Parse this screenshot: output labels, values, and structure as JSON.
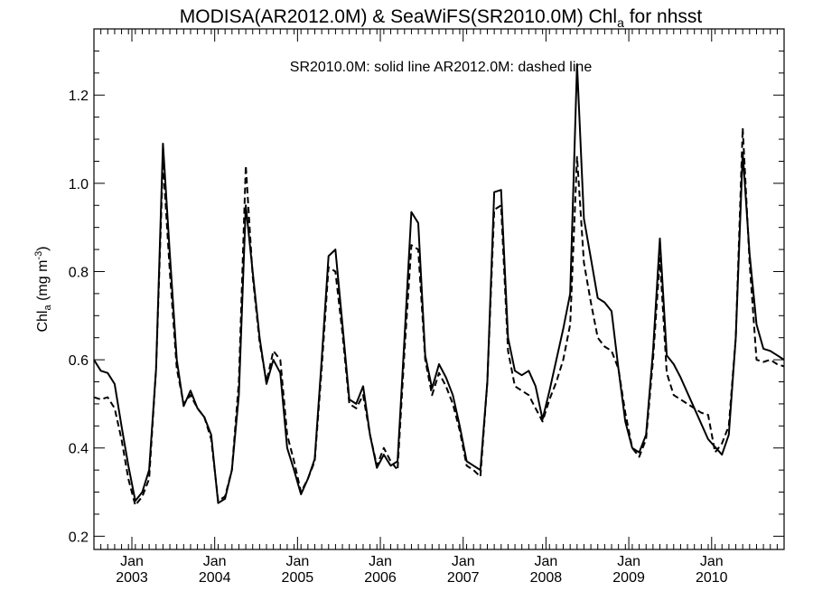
{
  "chart_data": {
    "type": "line",
    "title": {
      "main": "MODISA(AR2012.0M) & SeaWiFS(SR2010.0M)  Chl",
      "sub": "a",
      "tail": " for nhsst"
    },
    "ylabel": {
      "main": "Chl",
      "sub": "a",
      "unit_open": " (mg m",
      "unit_sup": "-3",
      "unit_close": ")"
    },
    "annotation": "SR2010.0M: solid line   AR2012.0M: dashed line",
    "xlim": [
      2002.542,
      2010.875
    ],
    "ylim": [
      0.17,
      1.35
    ],
    "yticks": [
      0.2,
      0.4,
      0.6,
      0.8,
      1.0,
      1.2
    ],
    "ytick_labels": [
      "0.2",
      "0.4",
      "0.6",
      "0.8",
      "1.0",
      "1.2"
    ],
    "xticks": [
      {
        "x": 2003.0,
        "month": "Jan",
        "year": "2003"
      },
      {
        "x": 2004.0,
        "month": "Jan",
        "year": "2004"
      },
      {
        "x": 2005.0,
        "month": "Jan",
        "year": "2005"
      },
      {
        "x": 2006.0,
        "month": "Jan",
        "year": "2006"
      },
      {
        "x": 2007.0,
        "month": "Jan",
        "year": "2007"
      },
      {
        "x": 2008.0,
        "month": "Jan",
        "year": "2008"
      },
      {
        "x": 2009.0,
        "month": "Jan",
        "year": "2009"
      },
      {
        "x": 2010.0,
        "month": "Jan",
        "year": "2010"
      }
    ],
    "x_minor_step": 0.0833333,
    "series": [
      {
        "name": "SR2010.0M",
        "style": "solid",
        "color": "#000000",
        "points": [
          [
            2002.542,
            0.6
          ],
          [
            2002.625,
            0.575
          ],
          [
            2002.708,
            0.57
          ],
          [
            2002.792,
            0.545
          ],
          [
            2002.875,
            0.45
          ],
          [
            2002.958,
            0.36
          ],
          [
            2003.042,
            0.28
          ],
          [
            2003.125,
            0.3
          ],
          [
            2003.208,
            0.35
          ],
          [
            2003.292,
            0.58
          ],
          [
            2003.375,
            1.09
          ],
          [
            2003.458,
            0.84
          ],
          [
            2003.542,
            0.6
          ],
          [
            2003.625,
            0.495
          ],
          [
            2003.708,
            0.53
          ],
          [
            2003.792,
            0.49
          ],
          [
            2003.875,
            0.47
          ],
          [
            2003.958,
            0.43
          ],
          [
            2004.042,
            0.275
          ],
          [
            2004.125,
            0.285
          ],
          [
            2004.208,
            0.35
          ],
          [
            2004.292,
            0.52
          ],
          [
            2004.375,
            0.95
          ],
          [
            2004.458,
            0.8
          ],
          [
            2004.542,
            0.65
          ],
          [
            2004.625,
            0.545
          ],
          [
            2004.708,
            0.6
          ],
          [
            2004.792,
            0.57
          ],
          [
            2004.875,
            0.4
          ],
          [
            2004.958,
            0.35
          ],
          [
            2005.042,
            0.295
          ],
          [
            2005.125,
            0.33
          ],
          [
            2005.208,
            0.375
          ],
          [
            2005.292,
            0.6
          ],
          [
            2005.375,
            0.835
          ],
          [
            2005.458,
            0.85
          ],
          [
            2005.542,
            0.68
          ],
          [
            2005.625,
            0.51
          ],
          [
            2005.708,
            0.5
          ],
          [
            2005.792,
            0.54
          ],
          [
            2005.875,
            0.43
          ],
          [
            2005.958,
            0.355
          ],
          [
            2006.042,
            0.385
          ],
          [
            2006.125,
            0.36
          ],
          [
            2006.208,
            0.37
          ],
          [
            2006.292,
            0.65
          ],
          [
            2006.375,
            0.935
          ],
          [
            2006.458,
            0.91
          ],
          [
            2006.542,
            0.61
          ],
          [
            2006.625,
            0.535
          ],
          [
            2006.708,
            0.59
          ],
          [
            2006.792,
            0.56
          ],
          [
            2006.875,
            0.52
          ],
          [
            2006.958,
            0.45
          ],
          [
            2007.042,
            0.37
          ],
          [
            2007.125,
            0.36
          ],
          [
            2007.208,
            0.35
          ],
          [
            2007.292,
            0.55
          ],
          [
            2007.375,
            0.98
          ],
          [
            2007.458,
            0.985
          ],
          [
            2007.542,
            0.65
          ],
          [
            2007.625,
            0.575
          ],
          [
            2007.708,
            0.565
          ],
          [
            2007.792,
            0.575
          ],
          [
            2007.875,
            0.54
          ],
          [
            2007.958,
            0.465
          ],
          [
            2008.042,
            0.53
          ],
          [
            2008.125,
            0.6
          ],
          [
            2008.208,
            0.67
          ],
          [
            2008.292,
            0.75
          ],
          [
            2008.375,
            1.27
          ],
          [
            2008.458,
            0.92
          ],
          [
            2008.542,
            0.83
          ],
          [
            2008.625,
            0.74
          ],
          [
            2008.708,
            0.73
          ],
          [
            2008.792,
            0.71
          ],
          [
            2008.875,
            0.58
          ],
          [
            2008.958,
            0.46
          ],
          [
            2009.042,
            0.4
          ],
          [
            2009.125,
            0.39
          ],
          [
            2009.208,
            0.43
          ],
          [
            2009.292,
            0.62
          ],
          [
            2009.375,
            0.875
          ],
          [
            2009.458,
            0.61
          ],
          [
            2009.542,
            0.59
          ],
          [
            2009.625,
            0.56
          ],
          [
            2009.958,
            0.42
          ],
          [
            2010.125,
            0.385
          ],
          [
            2010.208,
            0.43
          ],
          [
            2010.292,
            0.65
          ],
          [
            2010.375,
            1.07
          ],
          [
            2010.458,
            0.84
          ],
          [
            2010.542,
            0.68
          ],
          [
            2010.625,
            0.625
          ],
          [
            2010.708,
            0.62
          ],
          [
            2010.792,
            0.61
          ],
          [
            2010.875,
            0.6
          ]
        ]
      },
      {
        "name": "AR2012.0M",
        "style": "dashed",
        "color": "#000000",
        "points": [
          [
            2002.542,
            0.515
          ],
          [
            2002.625,
            0.51
          ],
          [
            2002.708,
            0.515
          ],
          [
            2002.792,
            0.49
          ],
          [
            2002.875,
            0.42
          ],
          [
            2002.958,
            0.33
          ],
          [
            2003.042,
            0.27
          ],
          [
            2003.125,
            0.29
          ],
          [
            2003.208,
            0.33
          ],
          [
            2003.292,
            0.58
          ],
          [
            2003.375,
            1.05
          ],
          [
            2003.458,
            0.8
          ],
          [
            2003.542,
            0.58
          ],
          [
            2003.625,
            0.5
          ],
          [
            2003.708,
            0.52
          ],
          [
            2003.792,
            0.49
          ],
          [
            2003.875,
            0.47
          ],
          [
            2003.958,
            0.42
          ],
          [
            2004.042,
            0.28
          ],
          [
            2004.125,
            0.29
          ],
          [
            2004.208,
            0.35
          ],
          [
            2004.292,
            0.55
          ],
          [
            2004.375,
            1.04
          ],
          [
            2004.458,
            0.79
          ],
          [
            2004.542,
            0.64
          ],
          [
            2004.625,
            0.55
          ],
          [
            2004.708,
            0.62
          ],
          [
            2004.792,
            0.6
          ],
          [
            2004.875,
            0.43
          ],
          [
            2004.958,
            0.37
          ],
          [
            2005.042,
            0.3
          ],
          [
            2005.125,
            0.33
          ],
          [
            2005.208,
            0.37
          ],
          [
            2005.292,
            0.58
          ],
          [
            2005.375,
            0.81
          ],
          [
            2005.458,
            0.8
          ],
          [
            2005.542,
            0.66
          ],
          [
            2005.625,
            0.5
          ],
          [
            2005.708,
            0.49
          ],
          [
            2005.792,
            0.52
          ],
          [
            2005.875,
            0.43
          ],
          [
            2005.958,
            0.36
          ],
          [
            2006.042,
            0.4
          ],
          [
            2006.125,
            0.37
          ],
          [
            2006.208,
            0.35
          ],
          [
            2006.292,
            0.62
          ],
          [
            2006.375,
            0.86
          ],
          [
            2006.458,
            0.85
          ],
          [
            2006.542,
            0.6
          ],
          [
            2006.625,
            0.52
          ],
          [
            2006.708,
            0.57
          ],
          [
            2006.792,
            0.54
          ],
          [
            2006.875,
            0.5
          ],
          [
            2006.958,
            0.44
          ],
          [
            2007.042,
            0.36
          ],
          [
            2007.125,
            0.35
          ],
          [
            2007.208,
            0.335
          ],
          [
            2007.292,
            0.55
          ],
          [
            2007.375,
            0.94
          ],
          [
            2007.458,
            0.95
          ],
          [
            2007.542,
            0.62
          ],
          [
            2007.625,
            0.54
          ],
          [
            2007.708,
            0.53
          ],
          [
            2007.792,
            0.52
          ],
          [
            2007.875,
            0.49
          ],
          [
            2007.958,
            0.46
          ],
          [
            2008.042,
            0.51
          ],
          [
            2008.125,
            0.55
          ],
          [
            2008.208,
            0.6
          ],
          [
            2008.292,
            0.68
          ],
          [
            2008.375,
            1.06
          ],
          [
            2008.458,
            0.82
          ],
          [
            2008.542,
            0.73
          ],
          [
            2008.625,
            0.65
          ],
          [
            2008.708,
            0.63
          ],
          [
            2008.792,
            0.62
          ],
          [
            2008.875,
            0.58
          ],
          [
            2008.958,
            0.48
          ],
          [
            2009.042,
            0.4
          ],
          [
            2009.125,
            0.38
          ],
          [
            2009.208,
            0.42
          ],
          [
            2009.292,
            0.6
          ],
          [
            2009.375,
            0.83
          ],
          [
            2009.458,
            0.57
          ],
          [
            2009.542,
            0.52
          ],
          [
            2009.625,
            0.51
          ],
          [
            2009.708,
            0.5
          ],
          [
            2009.792,
            0.49
          ],
          [
            2009.875,
            0.48
          ],
          [
            2009.958,
            0.475
          ],
          [
            2010.042,
            0.39
          ],
          [
            2010.125,
            0.41
          ],
          [
            2010.208,
            0.45
          ],
          [
            2010.292,
            0.65
          ],
          [
            2010.375,
            1.125
          ],
          [
            2010.458,
            0.82
          ],
          [
            2010.542,
            0.6
          ],
          [
            2010.625,
            0.595
          ],
          [
            2010.708,
            0.6
          ],
          [
            2010.792,
            0.59
          ],
          [
            2010.875,
            0.585
          ]
        ]
      }
    ]
  }
}
